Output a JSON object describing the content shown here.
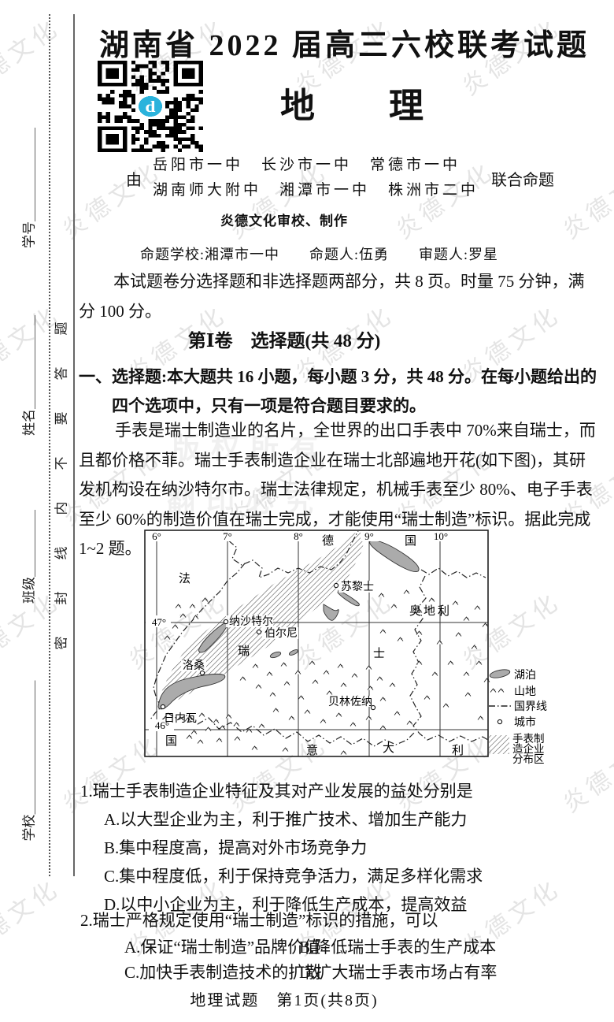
{
  "colors": {
    "qr_logo": "#2bb3dc",
    "lake_fill": "#ababab",
    "watermark": "#bdbdbd"
  },
  "margin": {
    "seal_text": "密封线内不要答题",
    "field_xuehao": "学号＿＿＿＿＿＿＿",
    "field_xingming": "姓名＿＿＿＿＿＿＿",
    "field_banji": "班级＿＿＿＿＿",
    "field_xuexiao": "学校＿＿＿＿＿＿＿＿＿＿"
  },
  "header": {
    "exam_title": "湖南省 2022 届高三六校联考试题",
    "subject": "地理",
    "qr_logo_letter": "d",
    "by_prefix": "由",
    "schools_row1": "岳阳市一中　长沙市一中　常德市一中",
    "schools_row2": "湖南师大附中　湘潭市一中　株洲市二中",
    "by_suffix": "联合命题",
    "production_credit": "炎德文化审校、制作",
    "setter_line": "命题学校:湘潭市一中　　命题人:伍勇　　审题人:罗星",
    "exam_info": "本试题卷分选择题和非选择题两部分，共 8 页。时量 75 分钟，满分 100 分。"
  },
  "section": {
    "part_title": "第Ⅰ卷　选择题(共 48 分)",
    "instruction": "一、选择题:本大题共 16 小题，每小题 3 分，共 48 分。在每小题给出的四个选项中，只有一项是符合题目要求的。",
    "passage": "手表是瑞士制造业的名片，全世界的出口手表中 70%来自瑞士，而且都价格不菲。瑞士手表制造企业在瑞士北部遍地开花(如下图)，其研发机构设在纳沙特尔市。瑞士法律规定，机械手表至少 80%、电子手表至少 60%的制造价值在瑞士完成，才能使用“瑞士制造”标识。据此完成 1~2 题。"
  },
  "map": {
    "lon_labels": [
      "6°",
      "7°",
      "8°",
      "9°",
      "10°"
    ],
    "lat_labels": [
      "47°",
      "46°"
    ],
    "labels": {
      "germany_1": "德",
      "germany_2": "国",
      "france_1": "法",
      "france_2": "国",
      "austria": "奥地利",
      "swiss_1": "瑞",
      "swiss_2": "士",
      "italy_1": "意",
      "italy_2": "大",
      "italy_3": "利"
    },
    "cities": {
      "neuchatel": "纳沙特尔",
      "bern": "伯尔尼",
      "zurich": "苏黎士",
      "lausanne": "洛桑",
      "geneva": "日内瓦",
      "bellinzona": "贝林佐纳"
    },
    "legend": {
      "lake": "湖泊",
      "mountain": "山地",
      "border": "国界线",
      "city": "城市",
      "watch_line1": "手表制",
      "watch_line2": "造企业",
      "watch_line3": "分布区"
    }
  },
  "questions": [
    {
      "number": "1.",
      "stem": "瑞士手表制造企业特征及其对产业发展的益处分别是",
      "options": [
        "A.以大型企业为主，利于推广技术、增加生产能力",
        "B.集中程度高，提高对外市场竞争力",
        "C.集中程度低，利于保持竞争活力，满足多样化需求",
        "D.以中小企业为主，利于降低生产成本，提高效益"
      ]
    },
    {
      "number": "2.",
      "stem": "瑞士严格规定使用“瑞士制造”标识的措施，可以",
      "options": [
        "A.保证“瑞士制造”品牌价值",
        "B.降低瑞士手表的生产成本",
        "C.加快手表制造技术的扩散",
        "D.扩大瑞士手表市场占有率"
      ]
    }
  ],
  "watermark": {
    "brand": "炎德文化",
    "copyright_1": "版权所有",
    "copyright_2": "翻印必究"
  },
  "footer": {
    "text": "地理试题　第1页(共8页)"
  }
}
